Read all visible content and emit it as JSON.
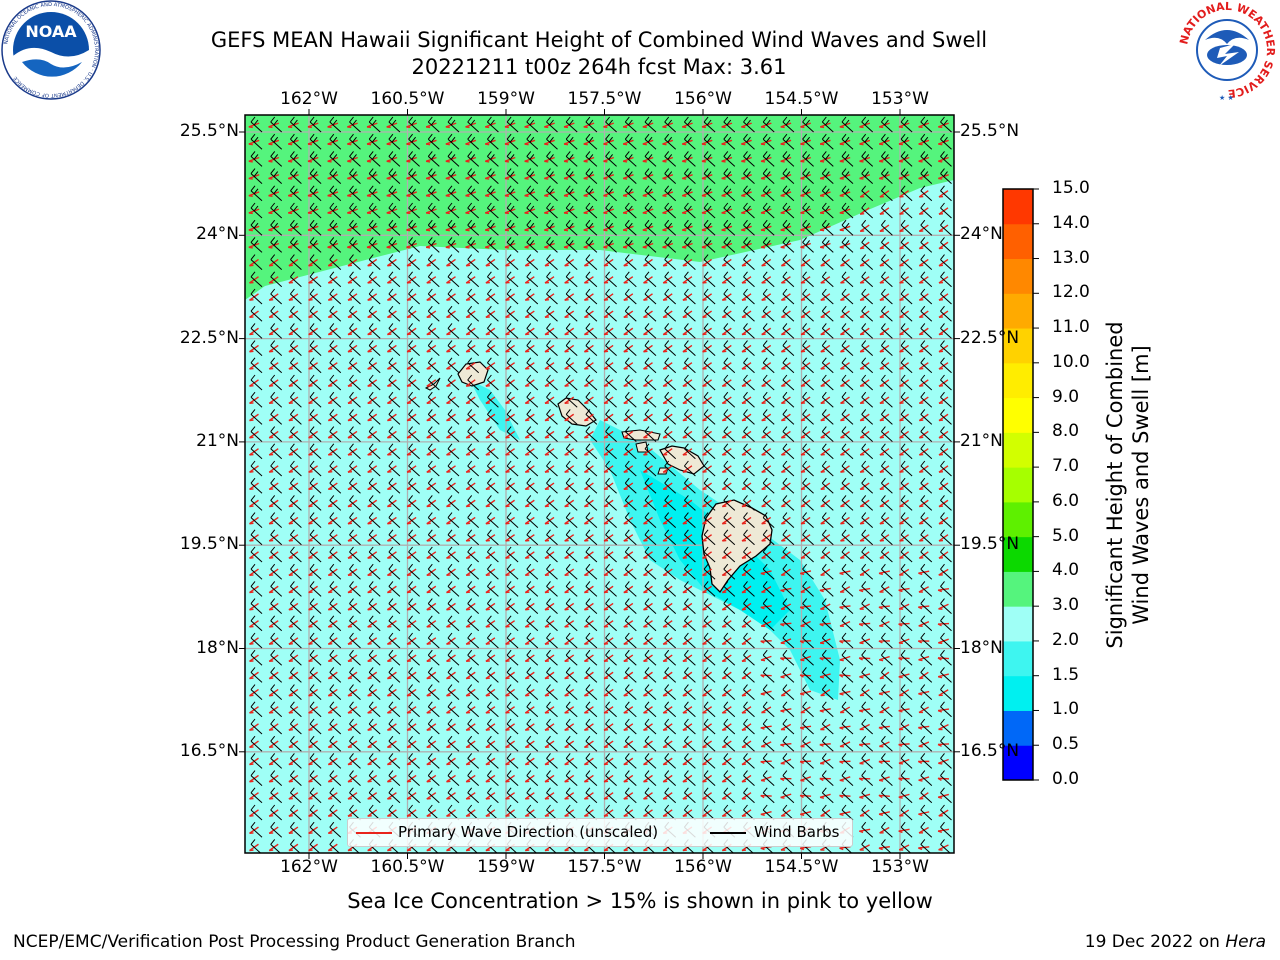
{
  "header": {
    "title_line1": "GEFS MEAN Hawaii Significant Height of Combined Wind Waves and Swell",
    "title_line2": "20221211 t00z 264h fcst   Max: 3.61"
  },
  "logos": {
    "noaa": {
      "name": "NOAA",
      "ring_text": "NATIONAL OCEANIC AND ATMOSPHERIC ADMINISTRATION · U.S. DEPARTMENT OF COMMERCE"
    },
    "nws": {
      "name": "NATIONAL WEATHER SERVICE"
    }
  },
  "map": {
    "lon_labels": [
      "162°W",
      "160.5°W",
      "159°W",
      "157.5°W",
      "156°W",
      "154.5°W",
      "153°W"
    ],
    "lat_labels": [
      "25.5°N",
      "24°N",
      "22.5°N",
      "21°N",
      "19.5°N",
      "18°N",
      "16.5°N"
    ],
    "lon_values": [
      -162,
      -160.5,
      -159,
      -157.5,
      -156,
      -154.5,
      -153
    ],
    "lat_values": [
      25.5,
      24,
      22.5,
      21,
      19.5,
      18,
      16.5
    ],
    "colors": {
      "wave_2_3m": "#9ffff6",
      "wave_3_4m": "#55f47d",
      "wave_1_5_2m": "#3ef5f0",
      "wave_1_1_5m": "#00f0f0",
      "land": "#eee9d6",
      "wave_direction": "#e8241c",
      "wind_barb": "#000000",
      "grid": "#b0b0b0"
    }
  },
  "colorbar": {
    "title": "Significant Height of Combined Wind Waves and Swell [m]",
    "title_line1": "Significant Height of Combined",
    "title_line2": "Wind Waves and Swell [m]",
    "tick_labels": [
      "15.0",
      "14.0",
      "13.0",
      "12.0",
      "11.0",
      "10.0",
      "9.0",
      "8.0",
      "7.0",
      "6.0",
      "5.0",
      "4.0",
      "3.0",
      "2.0",
      "1.5",
      "1.0",
      "0.5",
      "0.0"
    ],
    "colors": [
      "#0000ff",
      "#0068f8",
      "#00f0f0",
      "#3ef5f0",
      "#9ffff6",
      "#55f47d",
      "#0cd900",
      "#5ef000",
      "#a6ff00",
      "#d2ff00",
      "#ffff00",
      "#ffed00",
      "#ffd200",
      "#ffaa00",
      "#ff8800",
      "#ff6000",
      "#ff3800",
      "#ff0000"
    ]
  },
  "legend": {
    "wave_label": "Primary Wave Direction (unscaled)",
    "barb_label": "Wind Barbs"
  },
  "footnote": "Sea Ice Concentration > 15% is shown in pink to yellow",
  "footer": {
    "left": "NCEP/EMC/Verification Post Processing Product Generation Branch",
    "date": "19 Dec 2022 on ",
    "machine": "Hera"
  }
}
